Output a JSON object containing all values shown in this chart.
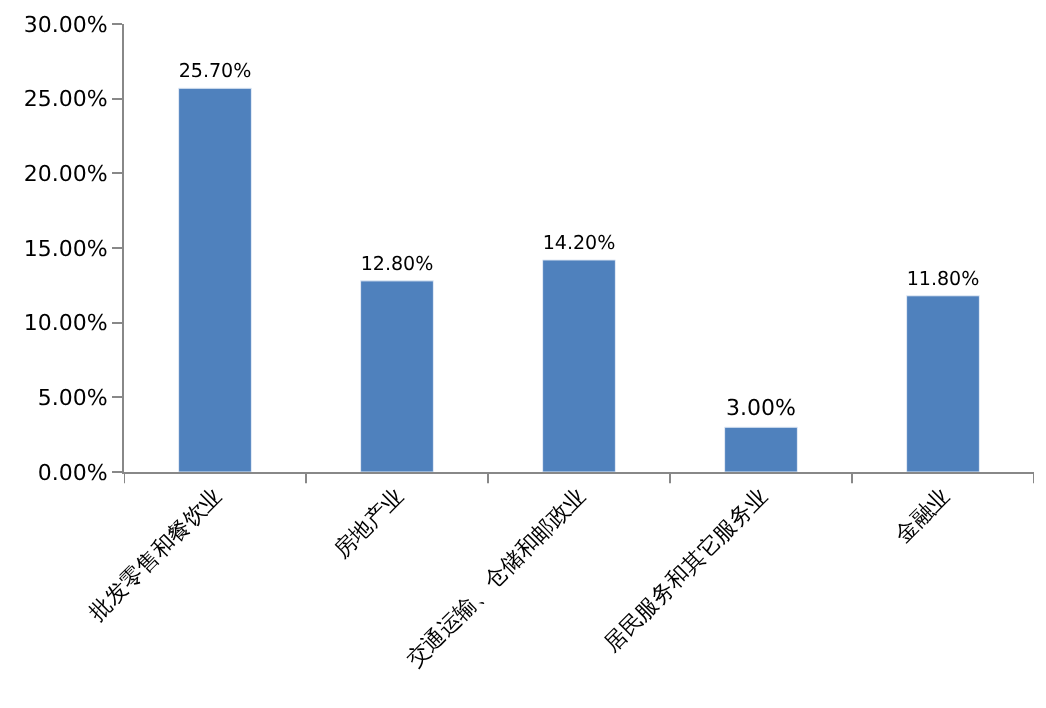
{
  "chart_data": {
    "type": "bar",
    "categories": [
      "批发零售和餐饮业",
      "房地产业",
      "交通运输、仓储和邮政业",
      "居民服务和其它服务业",
      "金融业"
    ],
    "values": [
      25.7,
      12.8,
      14.2,
      3.0,
      11.8
    ],
    "value_labels": [
      "25.70%",
      "12.80%",
      "14.20%",
      "3.00%",
      "11.80%"
    ],
    "color": "#4f81bd",
    "ylim": [
      0,
      30
    ],
    "yticks": [
      {
        "value": 0,
        "label": "0.00%"
      },
      {
        "value": 5,
        "label": "5.00%"
      },
      {
        "value": 10,
        "label": "10.00%"
      },
      {
        "value": 15,
        "label": "15.00%"
      },
      {
        "value": 20,
        "label": "20.00%"
      },
      {
        "value": 25,
        "label": "25.00%"
      },
      {
        "value": 30,
        "label": "30.00%"
      }
    ],
    "legend": false
  }
}
